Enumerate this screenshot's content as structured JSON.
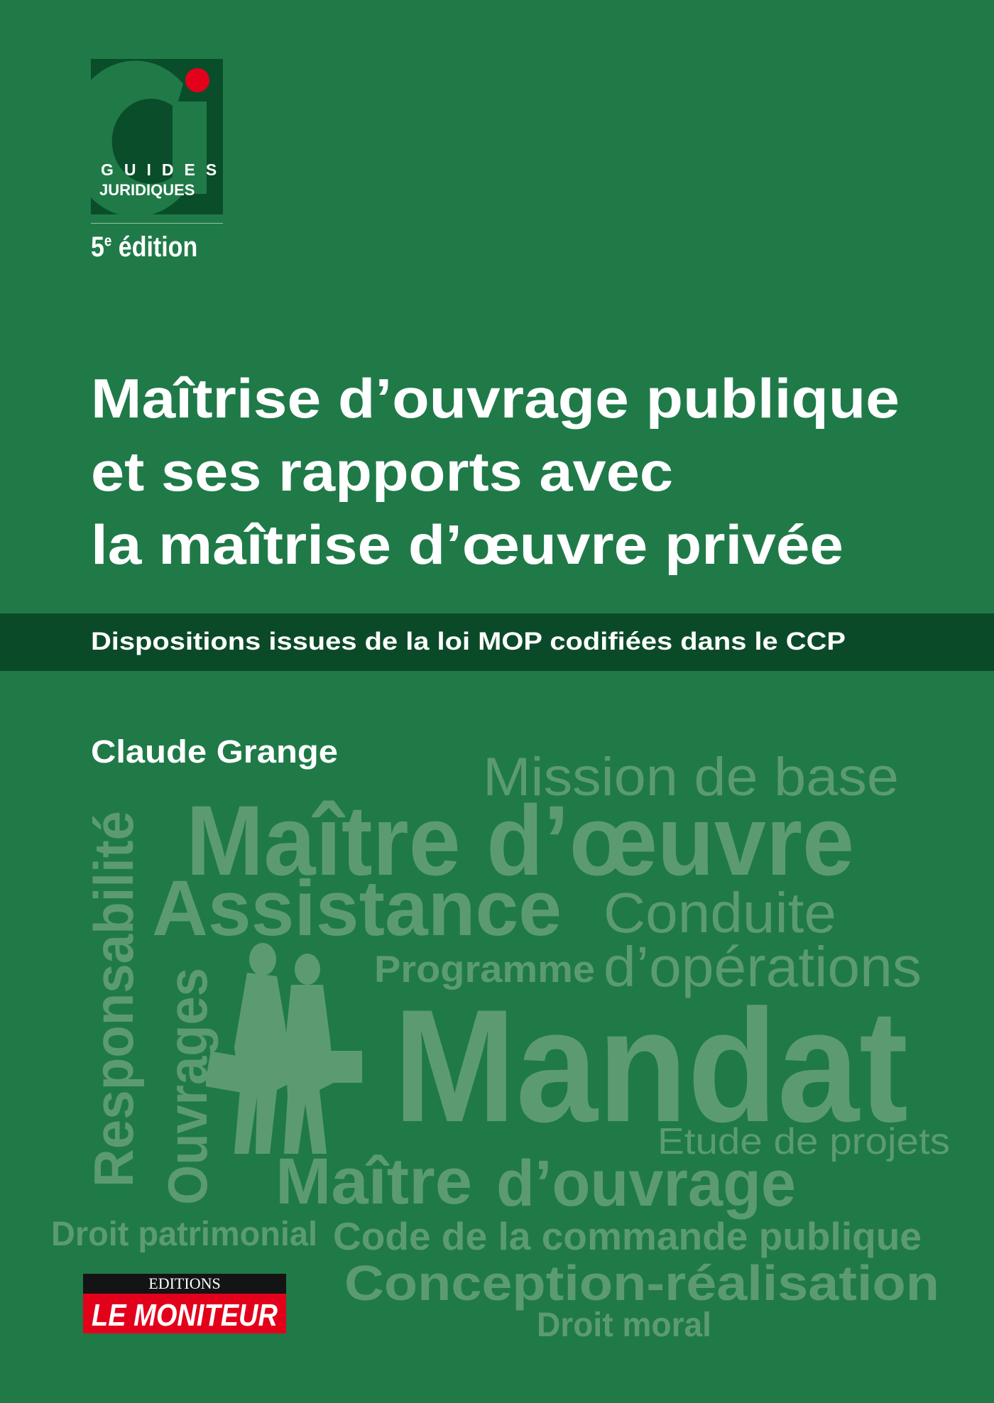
{
  "logo": {
    "line1": "GUIDES",
    "line2": "JURIDIQUES"
  },
  "edition": {
    "number": "5",
    "sup": "e",
    "label": "édition"
  },
  "title": {
    "lines": [
      "Maîtrise d’ouvrage publique",
      "et ses rapports avec",
      "la maîtrise d’œuvre privée"
    ]
  },
  "subtitle": "Dispositions issues de la loi MOP codifiées dans le CCP",
  "author": "Claude Grange",
  "word_cloud": {
    "mission": "Mission de base",
    "maitre_oeuvre": "Maître d’œuvre",
    "assistance": "Assistance",
    "conduite": "Conduite",
    "operations": "d’opérations",
    "programme": "Programme",
    "mandat": "Mandat",
    "etude": "Etude de projets",
    "maitre": "Maître",
    "ouvrage": "d’ouvrage",
    "responsabilite": "Responsabilité",
    "ouvrages": "Ouvrages",
    "droit_patrimonial": "Droit patrimonial",
    "code": "Code de la commande publique",
    "conception": "Conception-réalisation",
    "droit_moral": "Droit moral"
  },
  "publisher": {
    "top": "EDITIONS",
    "name": "LE MONITEUR"
  },
  "colors": {
    "background": "#1f7a48",
    "band": "#0b4a28",
    "cloud": "#5c9b71",
    "logo_dot": "#e3001b",
    "publisher_red": "#e3001b"
  }
}
